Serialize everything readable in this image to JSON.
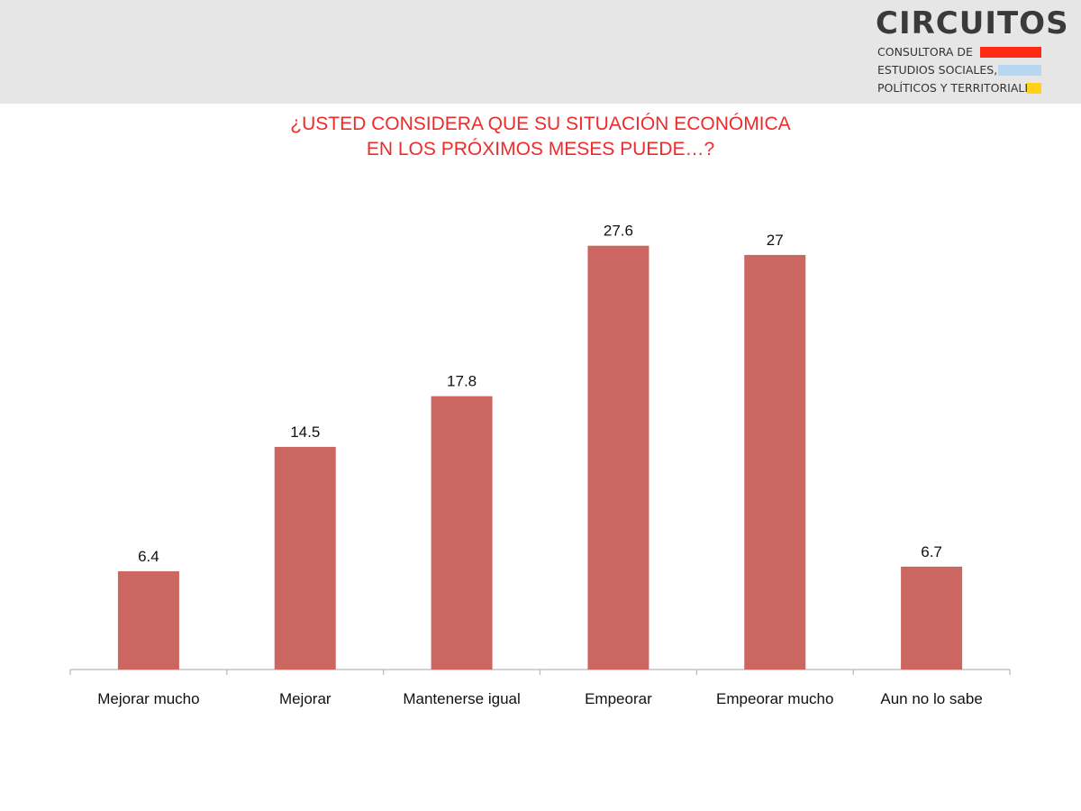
{
  "logo": {
    "name": "CIRCUITOS",
    "line1": "CONSULTORA DE",
    "line2": "ESTUDIOS SOCIALES,",
    "line3": "POLÍTICOS Y TERRITORIALES",
    "bar_colors": [
      "#ff2a12",
      "#b7d6f2",
      "#ffd21a"
    ]
  },
  "chart_data": {
    "type": "bar",
    "title": "¿USTED CONSIDERA QUE SU SITUACIÓN ECONÓMICA EN LOS PRÓXIMOS MESES PUEDE…?",
    "title_lines": [
      "¿USTED CONSIDERA QUE SU SITUACIÓN ECONÓMICA",
      "EN LOS PRÓXIMOS MESES PUEDE…?"
    ],
    "categories": [
      "Mejorar mucho",
      "Mejorar",
      "Mantenerse igual",
      "Empeorar",
      "Empeorar mucho",
      "Aun no lo sabe"
    ],
    "values": [
      6.4,
      14.5,
      17.8,
      27.6,
      27,
      6.7
    ],
    "value_labels": [
      "6.4",
      "14.5",
      "17.8",
      "27.6",
      "27",
      "6.7"
    ],
    "ylim": [
      0,
      30
    ],
    "grid": false,
    "bar_color": "#cc6660",
    "title_color": "#ee2b2b"
  }
}
